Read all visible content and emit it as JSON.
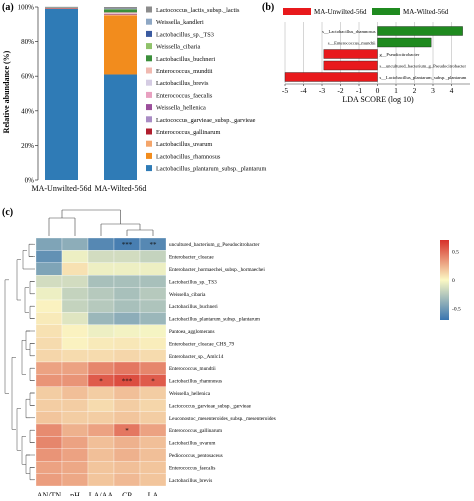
{
  "panels": {
    "a": "(a)",
    "b": "(b)",
    "c": "(c)"
  },
  "colors": {
    "Lactococcus_lactis_subsp._lactis": "#8c8c8c",
    "Weissella_kandleri": "#8ea7c4",
    "Lactobacillus_sp._TS3": "#3a5aa0",
    "Weissella_cibaria": "#8fc26a",
    "Lactobacillus_buchneri": "#3b8f3b",
    "Enterococcus_mundtii": "#f0b9b0",
    "Lactobacillus_brevis": "#d5cce3",
    "Enterococcus_faecalis": "#e8a0c0",
    "Weissella_hellenica": "#9b4f9b",
    "Lactococcus_garvieae_subsp._garvieae": "#a98cc4",
    "Enterococcus_gallinarum": "#b01e2e",
    "Lactobacillus_uvarum": "#f4a56a",
    "Lactobacillus_rhamnosus": "#f28c1d",
    "Lactobacillus_plantarum_subsp._plantarum": "#2f7bb6",
    "unwilted": "#e8191c",
    "wilted": "#1f8a1f"
  },
  "chart_data": [
    {
      "type": "bar",
      "stacked": true,
      "ylabel": "Relative abundance (%)",
      "categories": [
        "MA-Unwilted-56d",
        "MA-Wilted-56d"
      ],
      "ylim": [
        0,
        100
      ],
      "yticks": [
        "0%",
        "20%",
        "40%",
        "60%",
        "80%",
        "100%"
      ],
      "legend_position": "right",
      "series": [
        {
          "name": "Lactobacillus_plantarum_subsp._plantarum",
          "values": [
            99.0,
            61.0
          ]
        },
        {
          "name": "Lactobacillus_rhamnosus",
          "values": [
            0.1,
            34.0
          ]
        },
        {
          "name": "Lactobacillus_uvarum",
          "values": [
            0.1,
            0.6
          ]
        },
        {
          "name": "Enterococcus_gallinarum",
          "values": [
            0.1,
            0.2
          ]
        },
        {
          "name": "Lactococcus_garvieae_subsp._garvieae",
          "values": [
            0.1,
            0.1
          ]
        },
        {
          "name": "Weissella_hellenica",
          "values": [
            0.1,
            0.1
          ]
        },
        {
          "name": "Enterococcus_faecalis",
          "values": [
            0.1,
            0.2
          ]
        },
        {
          "name": "Lactobacillus_brevis",
          "values": [
            0.1,
            0.2
          ]
        },
        {
          "name": "Enterococcus_mundtii",
          "values": [
            0.1,
            0.5
          ]
        },
        {
          "name": "Lactobacillus_buchneri",
          "values": [
            0.05,
            1.6
          ]
        },
        {
          "name": "Weissella_cibaria",
          "values": [
            0.05,
            0.3
          ]
        },
        {
          "name": "Lactobacillus_sp._TS3",
          "values": [
            0.05,
            0.2
          ]
        },
        {
          "name": "Weissella_kandleri",
          "values": [
            0.05,
            0.1
          ]
        },
        {
          "name": "Lactococcus_lactis_subsp._lactis",
          "values": [
            0.1,
            0.9
          ]
        }
      ],
      "legend_labels": [
        "Lactococcus_lactis_subsp._lactis",
        "Weissella_kandleri",
        "Lactobacillus_sp._TS3",
        "Weissella_cibaria",
        "Lactobacillus_buchneri",
        "Enterococcus_mundtii",
        "Lactobacillus_brevis",
        "Enterococcus_faecalis",
        "Weissella_hellenica",
        "Lactococcus_garvieae_subsp._garvieae",
        "Enterococcus_gallinarum",
        "Lactobacillus_uvarum",
        "Lactobacillus_rhamnosus",
        "Lactobacillus_plantarum_subsp._plantarum"
      ]
    },
    {
      "type": "bar",
      "orientation": "horizontal",
      "xlabel": "LDA SCORE (log 10)",
      "xlim": [
        -5,
        5
      ],
      "xticks": [
        -5,
        -4,
        -3,
        -2,
        -1,
        0,
        1,
        2,
        3,
        4
      ],
      "legend": [
        "MA-Unwilted-56d",
        "MA-Wilted-56d"
      ],
      "bars": [
        {
          "label": "s__Lactobacillus_rhamnosus",
          "value": 4.6,
          "group": "MA-Wilted-56d"
        },
        {
          "label": "s__Enterococcus_mundtii",
          "value": 2.9,
          "group": "MA-Wilted-56d"
        },
        {
          "label": "g__Pseudocitrobacter",
          "value": -2.9,
          "group": "MA-Unwilted-56d"
        },
        {
          "label": "s__uncultured_bacterium_g_Pseudocitrobacter",
          "value": -2.9,
          "group": "MA-Unwilted-56d"
        },
        {
          "label": "s__Lactobacillus_plantarum_subsp._plantarum",
          "value": -5.0,
          "group": "MA-Unwilted-56d"
        }
      ]
    },
    {
      "type": "heatmap",
      "x": [
        "AN/TN",
        "pH",
        "LA/AA",
        "CP",
        "LA"
      ],
      "y": [
        "uncultured_bacterium_g_Pseudocitrobacter",
        "Enterobacter_cloacae",
        "Enterobacter_hormaechei_subsp._hormaechei",
        "Lactobacillus_sp._TS3",
        "Weissella_cibaria",
        "Lactobacillus_buchneri",
        "Lactobacillus_plantarum_subsp._plantarum",
        "Pantoea_agglomerans",
        "Enterobacter_cloacae_CHS_79",
        "Enterobacter_sp._Amlc14",
        "Enterococcus_mundtii",
        "Lactobacillus_rhamnosus",
        "Weissella_hellenica",
        "Lactococcus_garvieae_subsp._garvieae",
        "Leuconostoc_mesenteroides_subsp._mesenteroides",
        "Enterococcus_gallinarum",
        "Lactobacillus_uvarum",
        "Pediococcus_pentosaceus",
        "Enterococcus_faecalis",
        "Lactobacillus_brevis"
      ],
      "values": [
        [
          -0.45,
          -0.4,
          -0.6,
          -0.65,
          -0.6
        ],
        [
          -0.55,
          -0.05,
          -0.15,
          -0.15,
          -0.2
        ],
        [
          -0.45,
          0.08,
          -0.05,
          -0.05,
          -0.05
        ],
        [
          -0.15,
          -0.15,
          -0.3,
          -0.3,
          -0.3
        ],
        [
          -0.05,
          -0.2,
          -0.25,
          -0.3,
          -0.25
        ],
        [
          0.02,
          -0.2,
          -0.25,
          -0.3,
          -0.28
        ],
        [
          0.05,
          -0.1,
          -0.35,
          -0.4,
          -0.35
        ],
        [
          0.08,
          0.02,
          -0.05,
          -0.03,
          -0.02
        ],
        [
          0.1,
          0.02,
          0.05,
          0.06,
          0.04
        ],
        [
          0.12,
          0.1,
          0.1,
          0.12,
          0.1
        ],
        [
          0.3,
          0.3,
          0.4,
          0.45,
          0.4
        ],
        [
          0.35,
          0.35,
          0.55,
          0.6,
          0.55
        ],
        [
          0.15,
          0.2,
          0.15,
          0.2,
          0.15
        ],
        [
          0.15,
          0.15,
          0.1,
          0.15,
          0.12
        ],
        [
          0.18,
          0.15,
          0.15,
          0.18,
          0.15
        ],
        [
          0.38,
          0.25,
          0.3,
          0.45,
          0.3
        ],
        [
          0.4,
          0.3,
          0.2,
          0.25,
          0.2
        ],
        [
          0.35,
          0.3,
          0.2,
          0.25,
          0.2
        ],
        [
          0.3,
          0.28,
          0.18,
          0.2,
          0.18
        ],
        [
          0.32,
          0.28,
          0.18,
          0.22,
          0.18
        ]
      ],
      "significance": [
        [
          "",
          "",
          "",
          "***",
          "**"
        ],
        [
          "",
          "",
          "",
          "",
          ""
        ],
        [
          "",
          "",
          "",
          "",
          ""
        ],
        [
          "",
          "",
          "",
          "",
          ""
        ],
        [
          "",
          "",
          "",
          "",
          ""
        ],
        [
          "",
          "",
          "",
          "",
          ""
        ],
        [
          "",
          "",
          "",
          "",
          ""
        ],
        [
          "",
          "",
          "",
          "",
          ""
        ],
        [
          "",
          "",
          "",
          "",
          ""
        ],
        [
          "",
          "",
          "",
          "",
          ""
        ],
        [
          "",
          "",
          "",
          "",
          ""
        ],
        [
          "",
          "",
          "*",
          "***",
          "*"
        ],
        [
          "",
          "",
          "",
          "",
          ""
        ],
        [
          "",
          "",
          "",
          "",
          ""
        ],
        [
          "",
          "",
          "",
          "",
          ""
        ],
        [
          "",
          "",
          "",
          "*",
          ""
        ],
        [
          "",
          "",
          "",
          "",
          ""
        ],
        [
          "",
          "",
          "",
          "",
          ""
        ],
        [
          "",
          "",
          "",
          "",
          ""
        ],
        [
          "",
          "",
          "",
          "",
          ""
        ]
      ],
      "colorbar_ticks": [
        "0.5",
        "0",
        "-0.5"
      ],
      "colorbar_range": [
        -0.7,
        0.7
      ]
    }
  ]
}
